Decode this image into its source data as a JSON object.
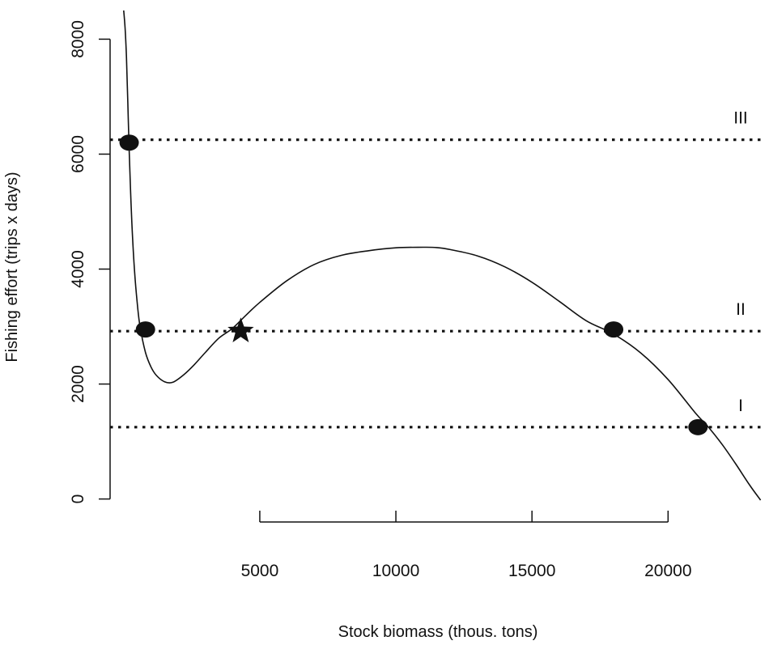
{
  "chart_data": {
    "type": "line",
    "title": "",
    "xlabel": "Stock biomass (thous. tons)",
    "ylabel": "Fishing effort (trips x days)",
    "xlim": [
      -500,
      23500
    ],
    "ylim": [
      -400,
      8400
    ],
    "x_ticks": [
      5000,
      10000,
      15000,
      20000
    ],
    "y_ticks": [
      0,
      2000,
      4000,
      6000,
      8000
    ],
    "grid": false,
    "curve": {
      "x": [
        0,
        50,
        100,
        150,
        200,
        250,
        300,
        400,
        500,
        600,
        800,
        1000,
        1200,
        1500,
        1800,
        2200,
        2600,
        3000,
        3500,
        4000,
        4500,
        5000,
        6000,
        7000,
        8000,
        9000,
        10000,
        11000,
        11500,
        12000,
        13000,
        14000,
        15000,
        16000,
        17000,
        18000,
        19000,
        20000,
        21000,
        21500,
        22000,
        22500,
        23000,
        23400
      ],
      "y": [
        8500,
        8200,
        7700,
        6900,
        6100,
        5400,
        4800,
        3950,
        3400,
        3000,
        2550,
        2300,
        2150,
        2040,
        2030,
        2160,
        2340,
        2550,
        2800,
        2970,
        3200,
        3420,
        3800,
        4080,
        4240,
        4320,
        4370,
        4380,
        4375,
        4340,
        4230,
        4040,
        3770,
        3440,
        3100,
        2870,
        2540,
        2080,
        1500,
        1240,
        940,
        600,
        240,
        -20
      ]
    },
    "effort_levels": [
      {
        "name": "III",
        "y": 6250
      },
      {
        "name": "II",
        "y": 2920
      },
      {
        "name": "I",
        "y": 1250
      }
    ],
    "equilibrium_points": [
      {
        "x": 200,
        "y": 6200,
        "marker": "circle"
      },
      {
        "x": 800,
        "y": 2950,
        "marker": "circle"
      },
      {
        "x": 18000,
        "y": 2950,
        "marker": "circle"
      },
      {
        "x": 21100,
        "y": 1250,
        "marker": "circle"
      },
      {
        "x": 4300,
        "y": 2920,
        "marker": "star"
      }
    ]
  }
}
